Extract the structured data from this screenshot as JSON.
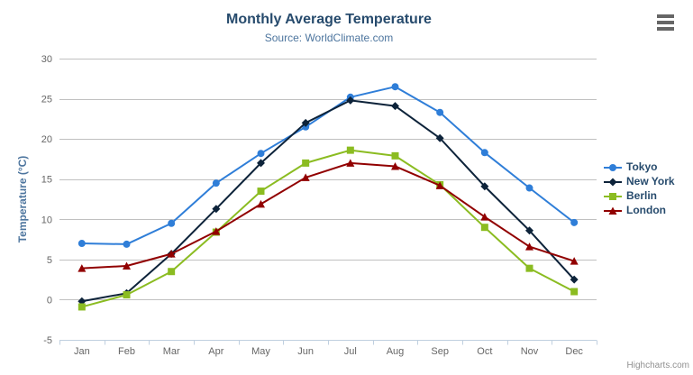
{
  "header": {
    "title": "Monthly Average Temperature",
    "subtitle": "Source: WorldClimate.com"
  },
  "credits": {
    "label": "Highcharts.com"
  },
  "icons": {
    "context_menu": "hamburger-menu-icon"
  },
  "colors": {
    "title": "#274b6d",
    "subtitle": "#4d759e",
    "axis_title": "#4d759e",
    "axis_labels": "#666666",
    "gridline": "#C0C0C0",
    "axis_line": "#C0D0E0",
    "legend_text": "#274b6d",
    "credits": "#909090",
    "menu_icon": "#666666"
  },
  "chart_data": {
    "type": "line",
    "title": "Monthly Average Temperature",
    "subtitle": "Source: WorldClimate.com",
    "xlabel": "",
    "ylabel": "Temperature (°C)",
    "ylim": [
      -5,
      30
    ],
    "yticks": [
      -5,
      0,
      5,
      10,
      15,
      20,
      25,
      30
    ],
    "grid": true,
    "legend_position": "right",
    "categories": [
      "Jan",
      "Feb",
      "Mar",
      "Apr",
      "May",
      "Jun",
      "Jul",
      "Aug",
      "Sep",
      "Oct",
      "Nov",
      "Dec"
    ],
    "series": [
      {
        "name": "Tokyo",
        "color": "#2f7ed8",
        "marker": "circle",
        "values": [
          7.0,
          6.9,
          9.5,
          14.5,
          18.2,
          21.5,
          25.2,
          26.5,
          23.3,
          18.3,
          13.9,
          9.6
        ]
      },
      {
        "name": "New York",
        "color": "#0d233a",
        "marker": "diamond",
        "values": [
          -0.2,
          0.8,
          5.7,
          11.3,
          17.0,
          22.0,
          24.8,
          24.1,
          20.1,
          14.1,
          8.6,
          2.5
        ]
      },
      {
        "name": "Berlin",
        "color": "#8bbc21",
        "marker": "square",
        "values": [
          -0.9,
          0.6,
          3.5,
          8.4,
          13.5,
          17.0,
          18.6,
          17.9,
          14.3,
          9.0,
          3.9,
          1.0
        ]
      },
      {
        "name": "London",
        "color": "#910000",
        "marker": "triangle",
        "values": [
          3.9,
          4.2,
          5.7,
          8.5,
          11.9,
          15.2,
          17.0,
          16.6,
          14.2,
          10.3,
          6.6,
          4.8
        ]
      }
    ]
  }
}
